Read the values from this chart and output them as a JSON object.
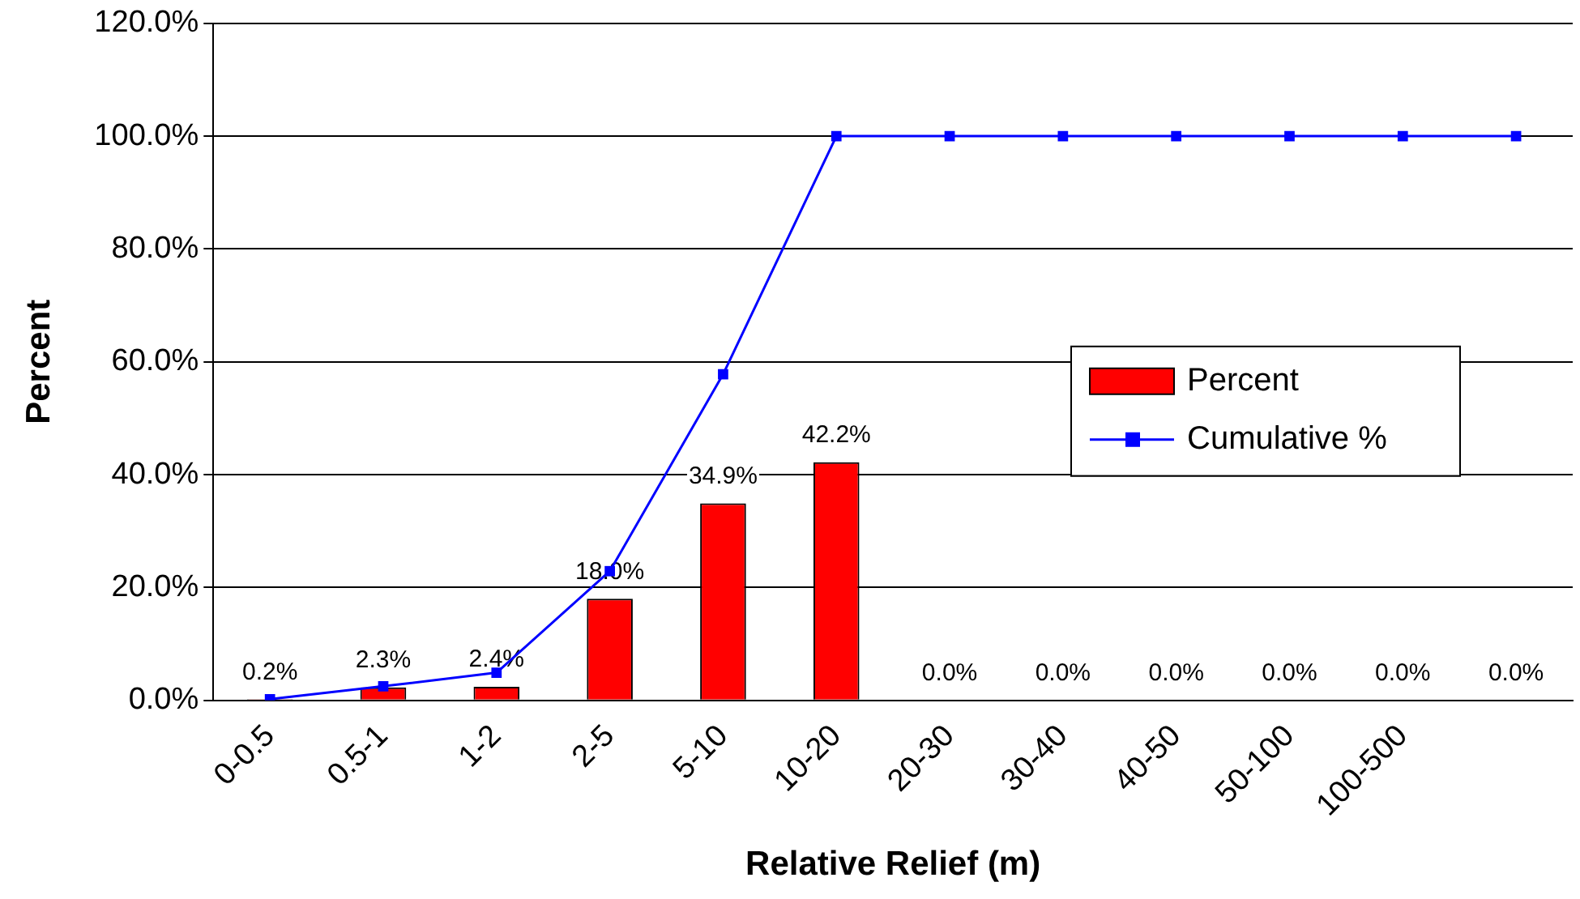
{
  "chart_data": {
    "type": "bar",
    "xlabel": "Relative Relief (m)",
    "ylabel": "Percent",
    "categories": [
      "0-0.5",
      "0.5-1",
      "1-2",
      "2-5",
      "5-10",
      "10-20",
      "20-30",
      "30-40",
      "40-50",
      "50-100",
      "100-500",
      null
    ],
    "series": [
      {
        "name": "Percent",
        "color": "#ff0000",
        "values": [
          0.2,
          2.3,
          2.4,
          18.0,
          34.9,
          42.2,
          0.0,
          0.0,
          0.0,
          0.0,
          0.0,
          0.0
        ],
        "value_labels": [
          "0.2%",
          "2.3%",
          "2.4%",
          "18.0%",
          "34.9%",
          "42.2%",
          "0.0%",
          "0.0%",
          "0.0%",
          "0.0%",
          "0.0%",
          "0.0%"
        ]
      },
      {
        "name": "Cumulative %",
        "type": "line",
        "color": "#0000ff",
        "values": [
          0.2,
          2.5,
          4.9,
          22.9,
          57.8,
          100.0,
          100.0,
          100.0,
          100.0,
          100.0,
          100.0,
          100.0
        ]
      }
    ],
    "ylim": [
      0,
      120
    ],
    "yticks": [
      {
        "value": 0,
        "label": "0.0%"
      },
      {
        "value": 20,
        "label": "20.0%"
      },
      {
        "value": 40,
        "label": "40.0%"
      },
      {
        "value": 60,
        "label": "60.0%"
      },
      {
        "value": 80,
        "label": "80.0%"
      },
      {
        "value": 100,
        "label": "100.0%"
      },
      {
        "value": 120,
        "label": "120.0%"
      }
    ],
    "grid": "y",
    "legend": "right",
    "marker": "square",
    "line_style": "solid"
  }
}
